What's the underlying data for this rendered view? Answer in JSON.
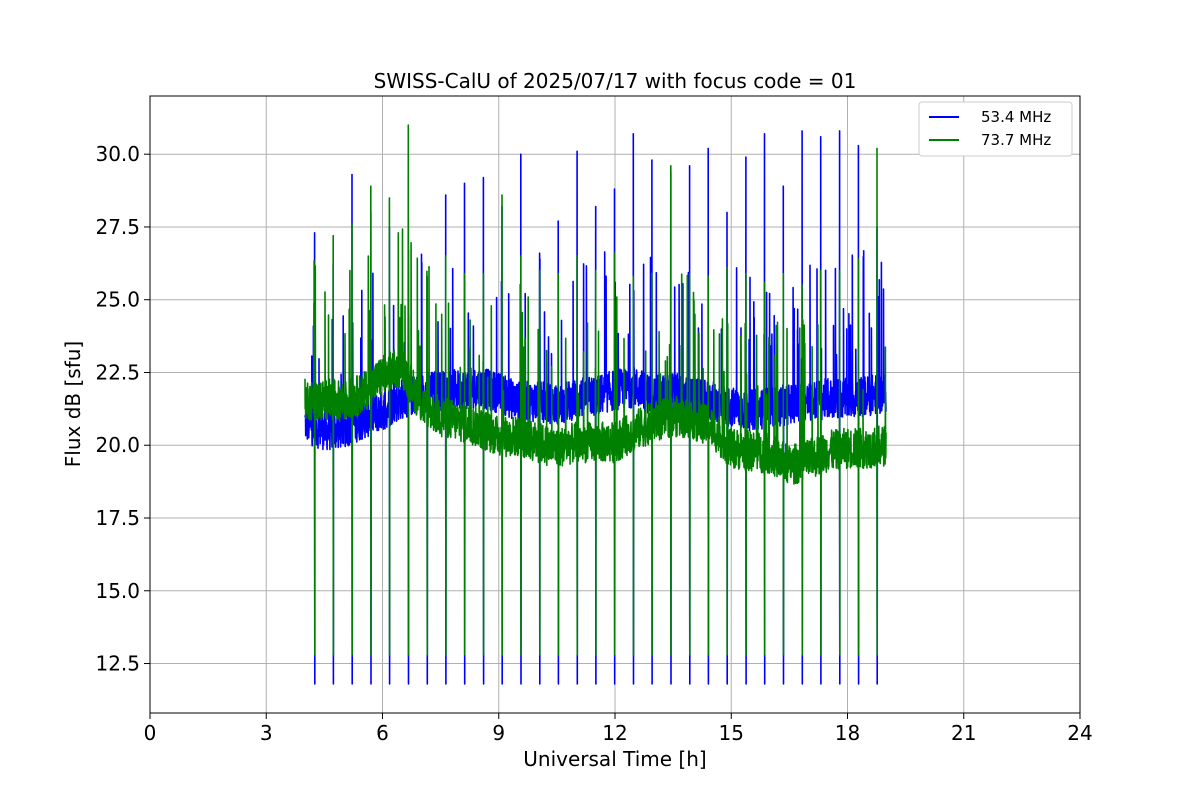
{
  "chart_data": {
    "type": "line",
    "title": "SWISS-CalU of 2025/07/17 with focus code = 01",
    "xlabel": "Universal Time [h]",
    "ylabel": "Flux dB [sfu]",
    "xlim": [
      0,
      24
    ],
    "ylim": [
      10.8,
      32.0
    ],
    "xticks": [
      0,
      3,
      6,
      9,
      12,
      15,
      18,
      21,
      24
    ],
    "xtick_labels": [
      "0",
      "3",
      "6",
      "9",
      "12",
      "15",
      "18",
      "21",
      "24"
    ],
    "yticks": [
      12.5,
      15.0,
      17.5,
      20.0,
      22.5,
      25.0,
      27.5,
      30.0
    ],
    "ytick_labels": [
      "12.5",
      "15.0",
      "17.5",
      "20.0",
      "22.5",
      "25.0",
      "27.5",
      "30.0"
    ],
    "grid": true,
    "legend_position": "top-right",
    "series": [
      {
        "name": "53.4 MHz",
        "color": "#0000ff",
        "x": [
          4.0,
          4.3,
          4.6,
          5.0,
          5.5,
          6.0,
          6.5,
          7.0,
          7.5,
          8.0,
          8.5,
          9.0,
          9.5,
          10.0,
          10.5,
          11.0,
          11.5,
          12.0,
          12.5,
          13.0,
          13.5,
          14.0,
          14.5,
          15.0,
          15.5,
          16.0,
          16.5,
          17.0,
          17.5,
          18.0,
          18.5,
          19.0
        ],
        "values": [
          20.8,
          20.6,
          20.5,
          20.6,
          20.9,
          21.2,
          21.6,
          21.8,
          21.9,
          21.9,
          22.0,
          21.8,
          21.5,
          21.5,
          21.4,
          21.6,
          21.7,
          21.9,
          22.0,
          21.7,
          21.8,
          21.6,
          21.5,
          21.3,
          21.2,
          21.3,
          21.4,
          21.5,
          21.6,
          21.6,
          21.7,
          21.8
        ],
        "spikes_high": [
          27.3,
          26.2,
          29.3,
          28.0,
          27.5,
          27.8,
          25.8,
          28.6,
          29.0,
          29.2,
          28.2,
          30.0,
          26.6,
          27.7,
          30.1,
          28.2,
          28.8,
          30.7,
          29.8,
          29.4,
          29.6,
          30.2,
          28.0,
          29.9,
          30.7,
          28.9,
          30.8,
          30.6,
          30.8,
          30.3,
          27.5
        ],
        "baseline_dips": 11.8
      },
      {
        "name": "73.7 MHz",
        "color": "#008000",
        "x": [
          4.0,
          4.3,
          4.6,
          5.0,
          5.5,
          6.0,
          6.5,
          7.0,
          7.5,
          8.0,
          8.5,
          9.0,
          9.5,
          10.0,
          10.5,
          11.0,
          11.5,
          12.0,
          12.5,
          13.0,
          13.5,
          14.0,
          14.5,
          15.0,
          15.5,
          16.0,
          16.5,
          17.0,
          17.5,
          18.0,
          18.5,
          19.0
        ],
        "values": [
          21.6,
          21.5,
          21.6,
          21.5,
          21.8,
          22.4,
          22.7,
          21.4,
          21.0,
          20.8,
          20.6,
          20.3,
          20.3,
          20.1,
          19.9,
          20.1,
          20.1,
          20.1,
          20.5,
          20.8,
          21.0,
          20.9,
          20.6,
          19.9,
          19.8,
          19.7,
          19.3,
          19.5,
          19.8,
          19.9,
          19.9,
          20.0
        ],
        "spikes_high": [
          25.7,
          27.2,
          27.6,
          28.9,
          28.5,
          31.0,
          25.5,
          26.5,
          25.9,
          25.9,
          28.6,
          26.5,
          26.0,
          25.9,
          26.5,
          26.0,
          26.6,
          25.8,
          25.9,
          29.6,
          25.9,
          25.8,
          26.1,
          25.9,
          25.6,
          25.9,
          25.5,
          26.0,
          26.0,
          26.4,
          30.2
        ],
        "baseline_dips": 12.8
      }
    ]
  }
}
